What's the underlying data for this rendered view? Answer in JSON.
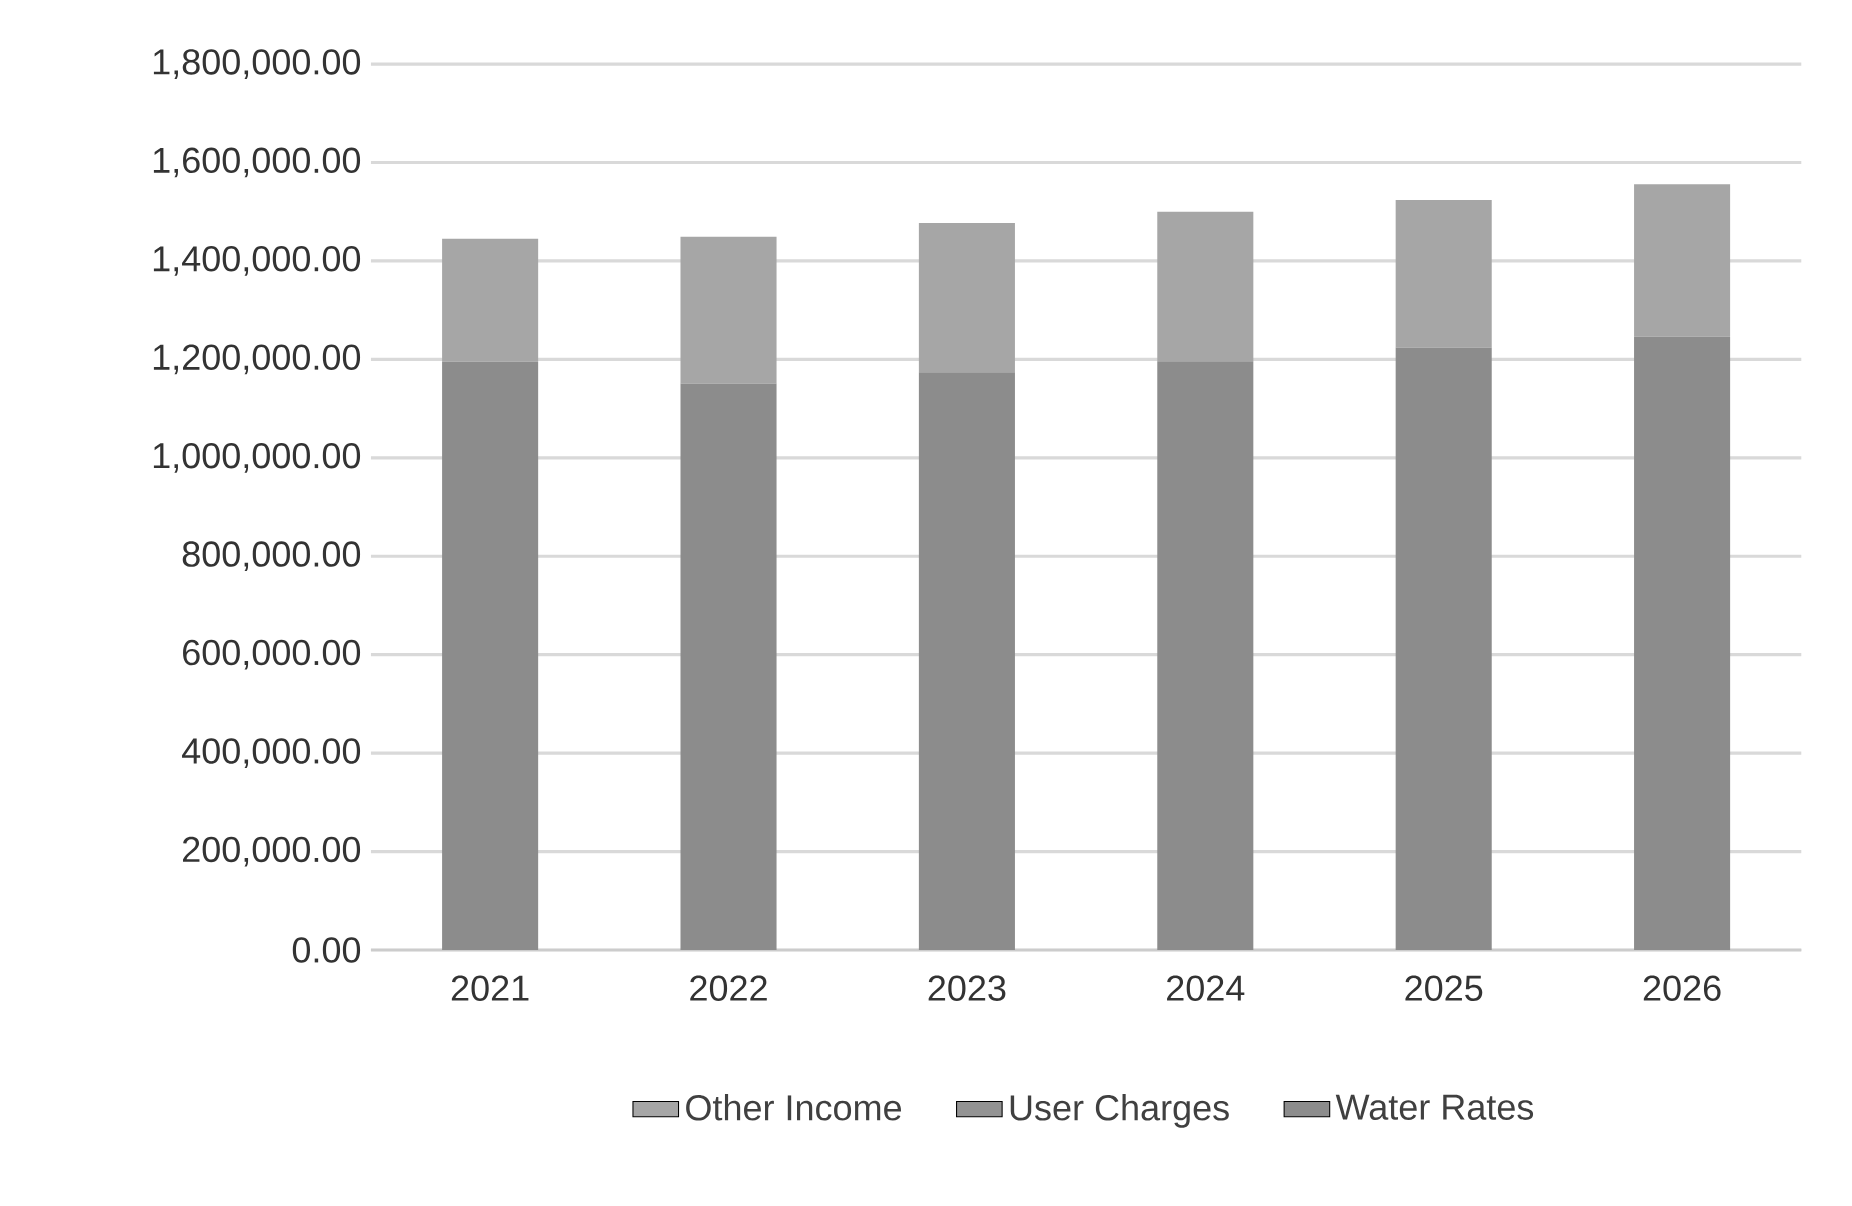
{
  "chart_data": {
    "type": "bar",
    "stacked": true,
    "categories": [
      "2021",
      "2022",
      "2023",
      "2024",
      "2025",
      "2026"
    ],
    "series": [
      {
        "name": "Water Rates",
        "color": "#8c8c8c",
        "values": [
          1195000,
          1151000,
          1174000,
          1196000,
          1224000,
          1246000
        ]
      },
      {
        "name": "User Charges",
        "color": "#939393",
        "values": [
          null,
          null,
          null,
          null,
          null,
          null
        ]
      },
      {
        "name": "Other Income",
        "color": "#a6a6a6",
        "values": [
          250000,
          298000,
          303000,
          304000,
          300000,
          310000
        ]
      }
    ],
    "ylim": [
      0,
      1800000
    ],
    "yticks": [
      {
        "value": 0,
        "label": "0.00"
      },
      {
        "value": 200000,
        "label": "200,000.00"
      },
      {
        "value": 400000,
        "label": "400,000.00"
      },
      {
        "value": 600000,
        "label": "600,000.00"
      },
      {
        "value": 800000,
        "label": "800,000.00"
      },
      {
        "value": 1000000,
        "label": "1,000,000.00"
      },
      {
        "value": 1200000,
        "label": "1,200,000.00"
      },
      {
        "value": 1400000,
        "label": "1,400,000.00"
      },
      {
        "value": 1600000,
        "label": "1,600,000.00"
      },
      {
        "value": 1800000,
        "label": "1,800,000.00"
      }
    ],
    "grid": "y",
    "legend": "bottom"
  }
}
